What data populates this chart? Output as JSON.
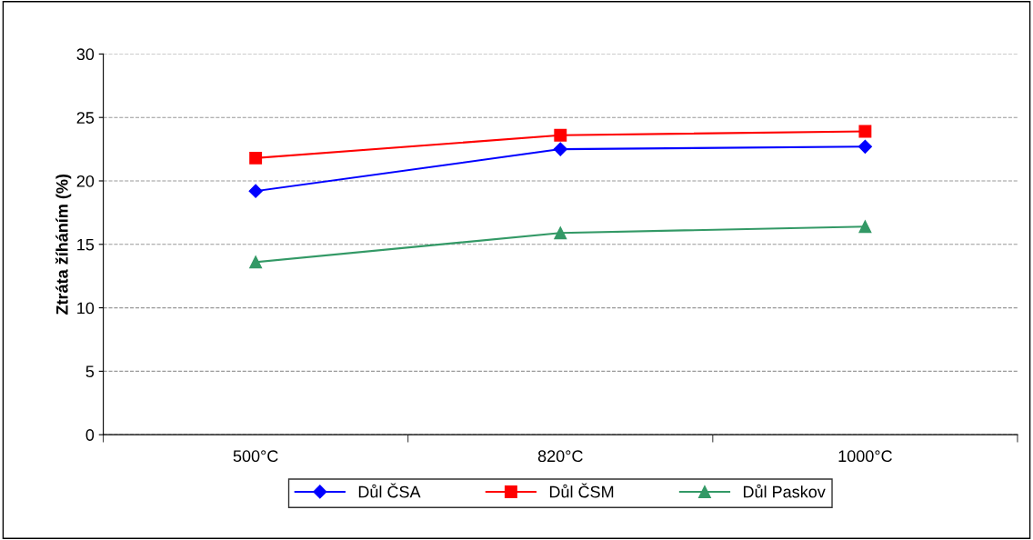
{
  "chart_data": {
    "type": "line",
    "ylabel": "Ztráta žíháním (%)",
    "categories": [
      "500°C",
      "820°C",
      "1000°C"
    ],
    "series": [
      {
        "name": "Důl ČSA",
        "color": "#0000ff",
        "marker": "diamond",
        "values": [
          19.2,
          22.5,
          22.7
        ]
      },
      {
        "name": "Důl ČSM",
        "color": "#ff0000",
        "marker": "square",
        "values": [
          21.8,
          23.6,
          23.9
        ]
      },
      {
        "name": "Důl Paskov",
        "color": "#339966",
        "marker": "triangle",
        "values": [
          13.6,
          15.9,
          16.4
        ]
      }
    ],
    "ylim": [
      0,
      30
    ],
    "yticks": [
      0,
      5,
      10,
      15,
      20,
      25,
      30
    ],
    "grid": "y",
    "legend": "bottom",
    "line_style": "solid"
  }
}
